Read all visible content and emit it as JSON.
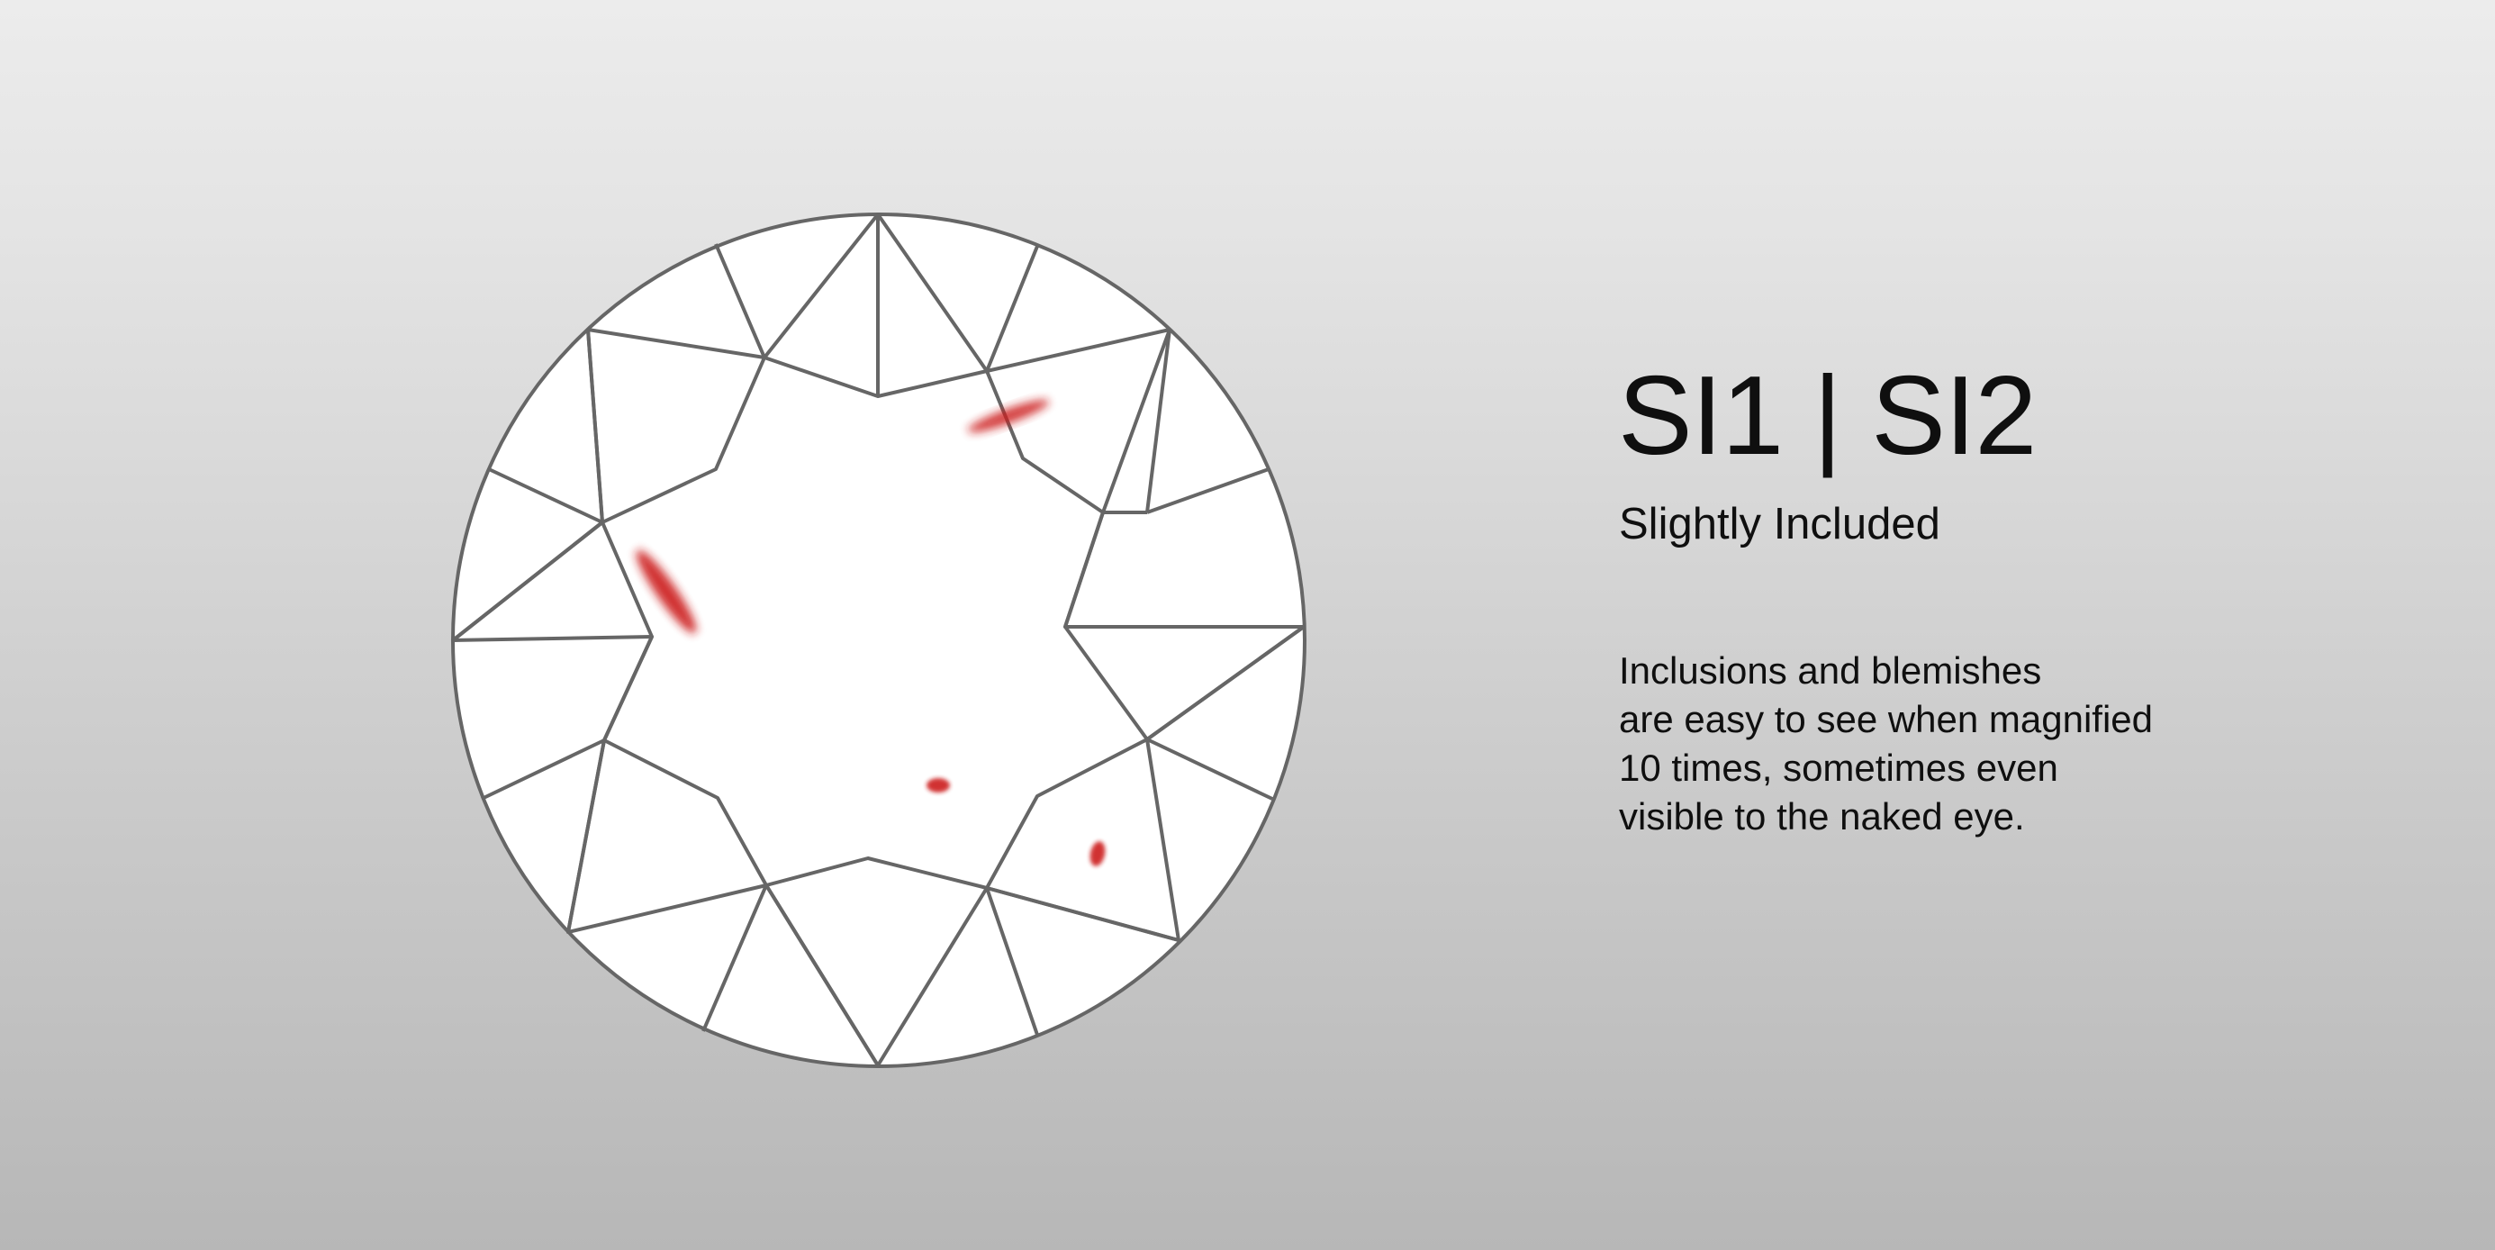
{
  "grade": {
    "title": "SI1 | SI2",
    "subtitle": "Slightly Included",
    "description_lines": [
      "Inclusions and blemishes",
      "are easy to see when magnified",
      "10 times, sometimes even",
      "visible to the naked eye."
    ]
  },
  "diagram": {
    "outline_color": "#666666",
    "facet_fill": "#ffffff",
    "inclusion_color": "#cc1a1a",
    "inclusion_count": 4
  }
}
